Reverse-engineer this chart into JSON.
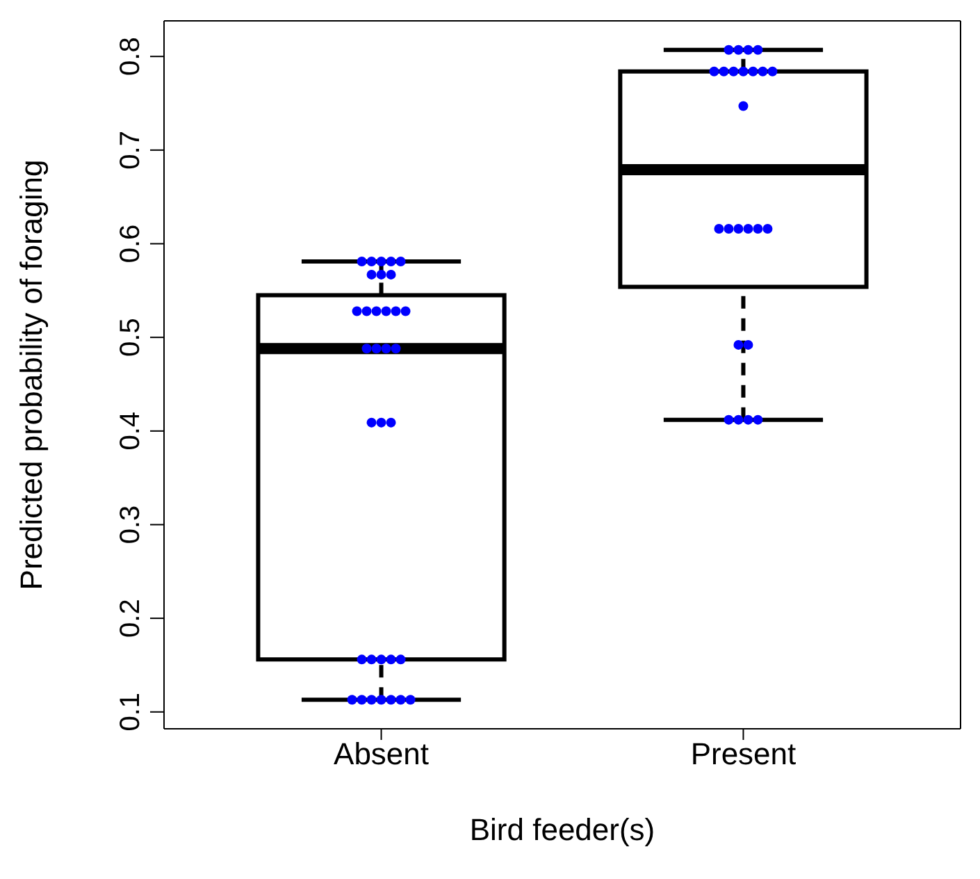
{
  "chart_data": {
    "type": "box",
    "xlabel": "Bird feeder(s)",
    "ylabel": "Predicted probability of foraging",
    "categories": [
      "Absent",
      "Present"
    ],
    "boxes": [
      {
        "low": 0.113,
        "q1": 0.156,
        "median": 0.488,
        "q3": 0.545,
        "high": 0.581
      },
      {
        "low": 0.412,
        "q1": 0.554,
        "median": 0.679,
        "q3": 0.784,
        "high": 0.807
      }
    ],
    "series": [
      {
        "type": "scatter",
        "color": "#0000ff",
        "x": [
          "Absent",
          "Absent",
          "Absent",
          "Absent",
          "Absent",
          "Absent",
          "Absent",
          "Absent",
          "Absent",
          "Absent",
          "Absent",
          "Absent",
          "Absent",
          "Absent",
          "Absent",
          "Absent",
          "Absent",
          "Absent",
          "Absent",
          "Absent",
          "Absent",
          "Absent",
          "Absent",
          "Absent",
          "Absent",
          "Absent",
          "Absent",
          "Absent",
          "Absent",
          "Absent",
          "Absent",
          "Absent",
          "Absent",
          "Present",
          "Present",
          "Present",
          "Present",
          "Present",
          "Present",
          "Present",
          "Present",
          "Present",
          "Present",
          "Present",
          "Present",
          "Present",
          "Present",
          "Present",
          "Present",
          "Present",
          "Present",
          "Present",
          "Present",
          "Present",
          "Present",
          "Present",
          "Present"
        ],
        "values": [
          0.581,
          0.581,
          0.581,
          0.581,
          0.581,
          0.567,
          0.567,
          0.567,
          0.528,
          0.528,
          0.528,
          0.528,
          0.528,
          0.528,
          0.488,
          0.488,
          0.488,
          0.488,
          0.409,
          0.409,
          0.409,
          0.156,
          0.156,
          0.156,
          0.156,
          0.156,
          0.113,
          0.113,
          0.113,
          0.113,
          0.113,
          0.113,
          0.113,
          0.807,
          0.807,
          0.807,
          0.807,
          0.784,
          0.784,
          0.784,
          0.784,
          0.784,
          0.784,
          0.784,
          0.747,
          0.616,
          0.616,
          0.616,
          0.616,
          0.616,
          0.616,
          0.492,
          0.492,
          0.412,
          0.412,
          0.412,
          0.412
        ]
      }
    ],
    "marker": "circle",
    "grid": false,
    "legend": false,
    "ylim": [
      0.082,
      0.838
    ],
    "yticks": [
      0.1,
      0.2,
      0.3,
      0.4,
      0.5,
      0.6,
      0.7,
      0.8
    ]
  }
}
